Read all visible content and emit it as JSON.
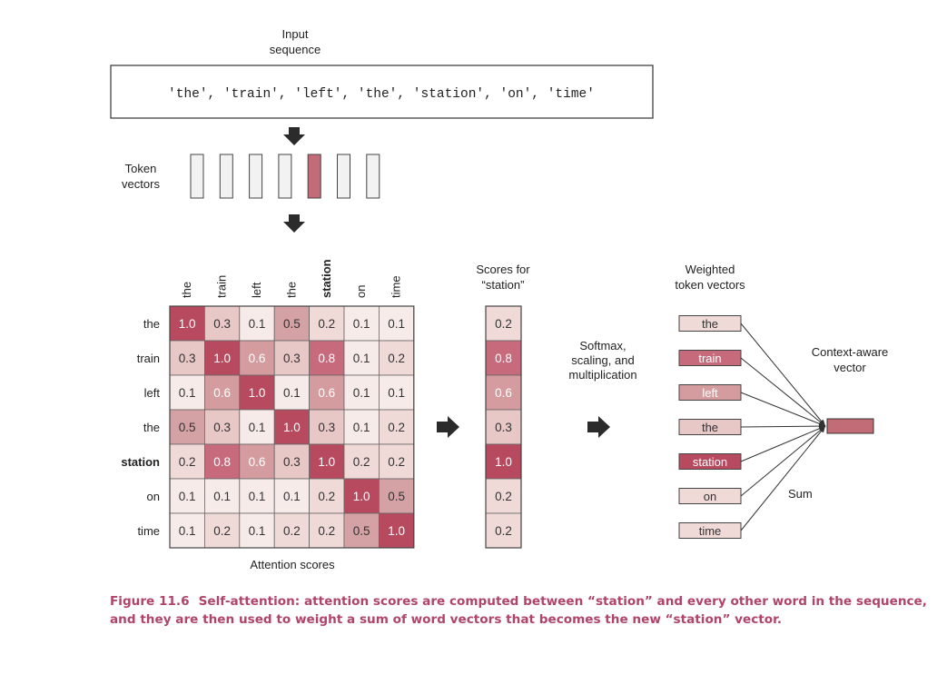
{
  "input_label": [
    "Input",
    "sequence"
  ],
  "input_sequence_text": "'the', 'train', 'left', 'the', 'station', 'on', 'time'",
  "token_vectors_label": [
    "Token",
    "vectors"
  ],
  "tokens": [
    "the",
    "train",
    "left",
    "the",
    "station",
    "on",
    "time"
  ],
  "highlighted_token": "station",
  "highlighted_index": 4,
  "attention_matrix": [
    [
      1.0,
      0.3,
      0.1,
      0.5,
      0.2,
      0.1,
      0.1
    ],
    [
      0.3,
      1.0,
      0.6,
      0.3,
      0.8,
      0.1,
      0.2
    ],
    [
      0.1,
      0.6,
      1.0,
      0.1,
      0.6,
      0.1,
      0.1
    ],
    [
      0.5,
      0.3,
      0.1,
      1.0,
      0.3,
      0.1,
      0.2
    ],
    [
      0.2,
      0.8,
      0.6,
      0.3,
      1.0,
      0.2,
      0.2
    ],
    [
      0.1,
      0.1,
      0.1,
      0.1,
      0.2,
      1.0,
      0.5
    ],
    [
      0.1,
      0.2,
      0.1,
      0.2,
      0.2,
      0.5,
      1.0
    ]
  ],
  "attention_scores_label": "Attention scores",
  "scores_label": [
    "Scores for",
    "“station”"
  ],
  "scores": [
    0.2,
    0.8,
    0.6,
    0.3,
    1.0,
    0.2,
    0.2
  ],
  "softmax_label": [
    "Softmax,",
    "scaling, and",
    "multiplication"
  ],
  "weighted_label": [
    "Weighted",
    "token vectors"
  ],
  "context_label": [
    "Context-aware",
    "vector"
  ],
  "sum_label": "Sum",
  "colors": {
    "c10": "#b84a5f",
    "c08": "#c76b7c",
    "c06": "#d59c9f",
    "c05": "#d4a1a4",
    "c03": "#e8c7c7",
    "c02": "#f0dad8",
    "c01": "#f7ebea",
    "token_vector_fill": "#f2f2f2",
    "highlight_vector_fill": "#c26c77",
    "context_fill": "#c26c77",
    "caption": "#b0446a"
  },
  "caption": {
    "figure_number": "Figure 11.6",
    "text": "Self-attention: attention scores are computed between “station” and every other word in the sequence, and they are then used to weight a sum of word vectors that becomes the new “station” vector."
  }
}
